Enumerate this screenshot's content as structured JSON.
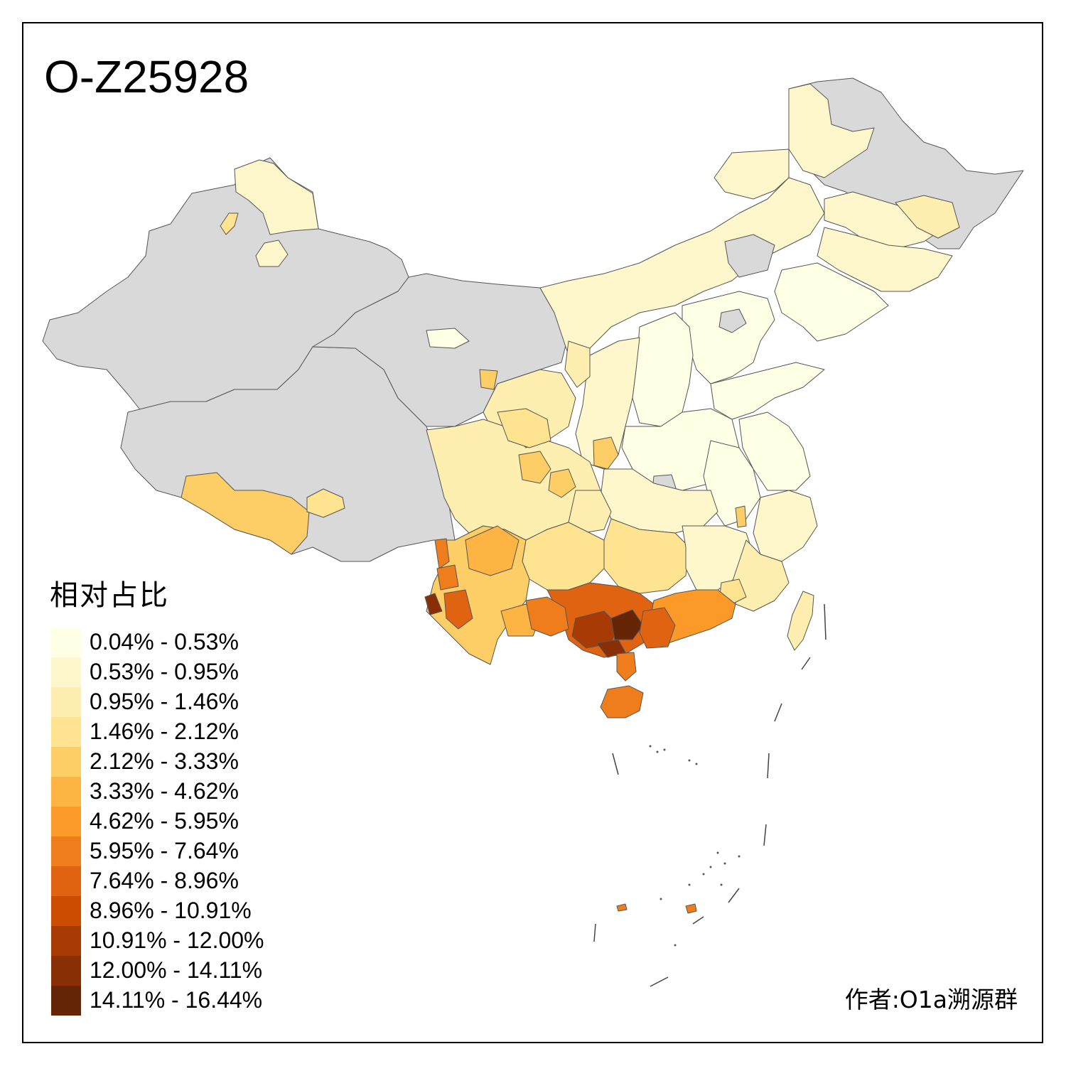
{
  "map": {
    "title": "O-Z25928",
    "no_data_color": "#d9d9d9",
    "border_color": "#555555"
  },
  "legend": {
    "title": "相对占比",
    "items": [
      {
        "label": "0.04% - 0.53%",
        "color": "#ffffe5"
      },
      {
        "label": "0.53% - 0.95%",
        "color": "#fff7cc"
      },
      {
        "label": "0.95% - 1.46%",
        "color": "#feeeb0"
      },
      {
        "label": "1.46% - 2.12%",
        "color": "#fee391"
      },
      {
        "label": "2.12% - 3.33%",
        "color": "#fece66"
      },
      {
        "label": "3.33% - 4.62%",
        "color": "#feb443"
      },
      {
        "label": "4.62% - 5.95%",
        "color": "#fb9a29"
      },
      {
        "label": "5.95% - 7.64%",
        "color": "#f07d1c"
      },
      {
        "label": "7.64% - 8.96%",
        "color": "#e06312"
      },
      {
        "label": "8.96% - 10.91%",
        "color": "#cc4c02"
      },
      {
        "label": "10.91% - 12.00%",
        "color": "#a83a03"
      },
      {
        "label": "12.00% - 14.11%",
        "color": "#882f05"
      },
      {
        "label": "14.11% - 16.44%",
        "color": "#662506"
      }
    ]
  },
  "credit": "作者:O1a溯源群"
}
